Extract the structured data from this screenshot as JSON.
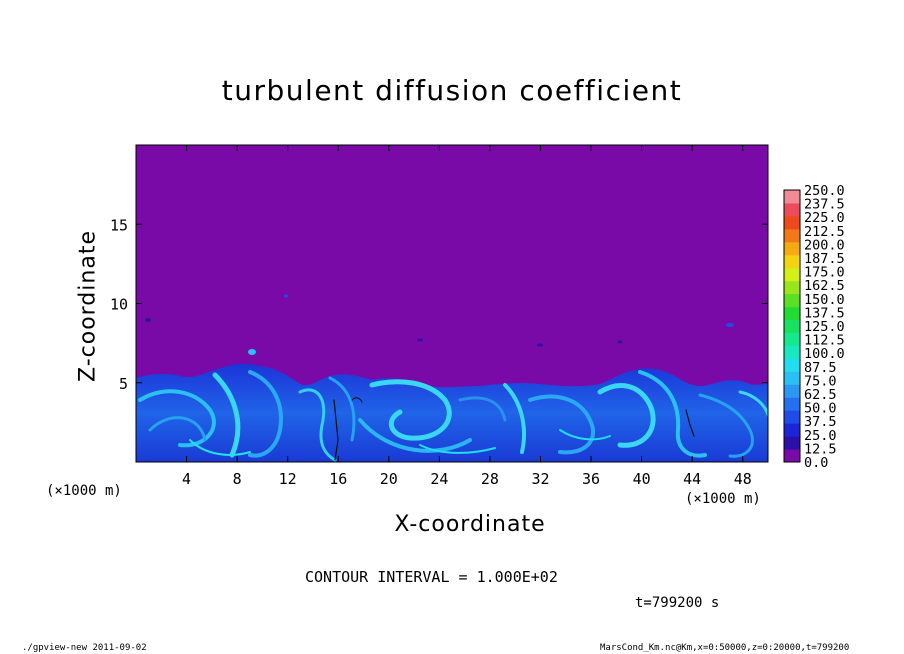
{
  "chart_data": {
    "type": "heatmap",
    "title": "turbulent diffusion coefficient",
    "xlabel": "X-coordinate",
    "ylabel": "Z-coordinate",
    "x_unit": "(×1000 m)",
    "y_unit": "(×1000 m)",
    "xlim": [
      0,
      50
    ],
    "ylim": [
      0,
      20
    ],
    "x_ticks": [
      4,
      8,
      12,
      16,
      20,
      24,
      28,
      32,
      36,
      40,
      44,
      48
    ],
    "y_ticks": [
      5,
      10,
      15
    ],
    "colorbar": {
      "levels": [
        "0.0",
        "12.5",
        "25.0",
        "37.5",
        "50.0",
        "62.5",
        "75.0",
        "87.5",
        "100.0",
        "112.5",
        "125.0",
        "137.5",
        "150.0",
        "162.5",
        "175.0",
        "187.5",
        "200.0",
        "212.5",
        "225.0",
        "237.5",
        "250.0"
      ],
      "colors": [
        "#7a0aa8",
        "#2a10a8",
        "#1c24d8",
        "#1f4ce6",
        "#2470ee",
        "#2a98f2",
        "#2ac0f4",
        "#22dcf0",
        "#18e8c0",
        "#16e890",
        "#18e060",
        "#22dc34",
        "#5ae024",
        "#9ae61c",
        "#d4ee18",
        "#f4d410",
        "#f4aa10",
        "#f27818",
        "#ee4a1c",
        "#ec4c5a",
        "#f08a94"
      ]
    },
    "field_description_levels": {
      "background_value": 0.0,
      "turbulent_layer_top_z": 5.5,
      "turbulent_layer_values_range": [
        12.5,
        87.5
      ]
    },
    "contour_interval": "CONTOUR INTERVAL = 1.000E+02",
    "time": "t=799200 s",
    "grid": false,
    "legend_position": "right"
  },
  "footer": {
    "left": "./gpview-new  2011-09-02",
    "right": "MarsCond_Km.nc@Km,x=0:50000,z=0:20000,t=799200"
  }
}
